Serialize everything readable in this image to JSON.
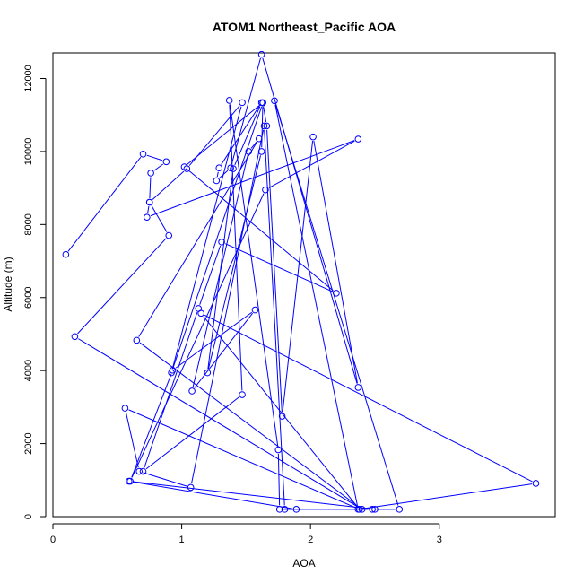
{
  "chart_data": {
    "type": "line",
    "title": "ATOM1 Northeast_Pacific AOA",
    "xlabel": "AOA",
    "ylabel": "Altitude (m)",
    "xlim": [
      0,
      3.9
    ],
    "ylim": [
      0,
      12700
    ],
    "xticks": [
      0,
      1,
      2,
      3
    ],
    "yticks": [
      0,
      2000,
      4000,
      6000,
      8000,
      10000,
      12000
    ],
    "grid": false,
    "legend": "none",
    "marker": "open-circle",
    "color": "#0000ff",
    "x": [
      0.1,
      0.7,
      0.88,
      0.76,
      0.75,
      0.73,
      2.37,
      1.65,
      0.6,
      0.93,
      1.57,
      1.08,
      1.52,
      1.6,
      0.65,
      2.4,
      0.17,
      0.9,
      0.75,
      1.04,
      1.47,
      0.92,
      1.63,
      1.66,
      1.78,
      2.02,
      2.37,
      1.62,
      1.38,
      1.27,
      1.29,
      1.62,
      1.4,
      1.2,
      1.62,
      1.63,
      1.02,
      2.2,
      1.31,
      1.13,
      0.7,
      1.47,
      1.37,
      1.75,
      1.76,
      2.48,
      2.69,
      1.72,
      2.37,
      3.75,
      1.15,
      2.38,
      0.56,
      0.67,
      1.07,
      1.64,
      1.8,
      1.89,
      0.59,
      2.5
    ],
    "y": [
      7180,
      9930,
      9720,
      9410,
      8610,
      8200,
      10340,
      8950,
      970,
      4010,
      5660,
      3440,
      10000,
      10350,
      4830,
      200,
      4930,
      7700,
      8610,
      9530,
      11340,
      3940,
      11330,
      10700,
      2750,
      10400,
      3540,
      12660,
      9550,
      9200,
      9550,
      11340,
      9530,
      3940,
      10000,
      11340,
      9580,
      6120,
      7520,
      5700,
      1240,
      3340,
      11400,
      1830,
      200,
      200,
      200,
      11390,
      200,
      910,
      5570,
      200,
      2970,
      1240,
      800,
      10700,
      200,
      200,
      970,
      200
    ]
  }
}
